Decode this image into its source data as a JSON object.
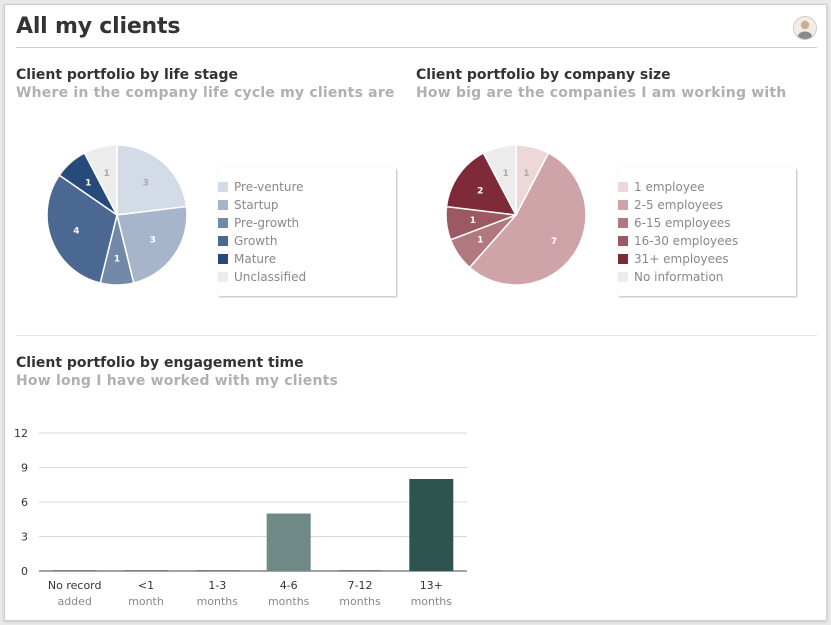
{
  "page": {
    "title": "All my clients"
  },
  "sections": {
    "life_stage": {
      "title": "Client portfolio by life stage",
      "subtitle": "Where in the company life cycle my clients are"
    },
    "company_size": {
      "title": "Client portfolio by company size",
      "subtitle": "How big are the companies I am working with"
    },
    "engagement": {
      "title": "Client portfolio by engagement time",
      "subtitle": "How long I have worked with my clients"
    }
  },
  "chart_data": [
    {
      "type": "pie",
      "title": "Client portfolio by life stage",
      "legend_position": "right",
      "slices": [
        {
          "label": "Pre-venture",
          "value": 3,
          "color": "#d3dce6"
        },
        {
          "label": "Startup",
          "value": 3,
          "color": "#a6b5c9"
        },
        {
          "label": "Pre-growth",
          "value": 1,
          "color": "#7389a8"
        },
        {
          "label": "Growth",
          "value": 4,
          "color": "#4b6893"
        },
        {
          "label": "Mature",
          "value": 1,
          "color": "#264a7a"
        },
        {
          "label": "Unclassified",
          "value": 1,
          "color": "#ececec"
        }
      ]
    },
    {
      "type": "pie",
      "title": "Client portfolio by company size",
      "legend_position": "right",
      "slices": [
        {
          "label": "1 employee",
          "value": 1,
          "color": "#eed7d8"
        },
        {
          "label": "2-5 employees",
          "value": 7,
          "color": "#cfa4a8"
        },
        {
          "label": "6-15 employees",
          "value": 1,
          "color": "#b27880"
        },
        {
          "label": "16-30 employees",
          "value": 1,
          "color": "#9c5863"
        },
        {
          "label": "31+ employees",
          "value": 2,
          "color": "#7f2a38"
        },
        {
          "label": "No information",
          "value": 1,
          "color": "#ececec"
        }
      ]
    },
    {
      "type": "bar",
      "title": "Client portfolio by engagement time",
      "categories": [
        {
          "line1": "No record",
          "line2": "added"
        },
        {
          "line1": "<1",
          "line2": "month"
        },
        {
          "line1": "1-3",
          "line2": "months"
        },
        {
          "line1": "4-6",
          "line2": "months"
        },
        {
          "line1": "7-12",
          "line2": "months"
        },
        {
          "line1": "13+",
          "line2": "months"
        }
      ],
      "values": [
        0,
        0,
        0,
        5,
        0,
        8
      ],
      "colors": [
        "#6f8a86",
        "#6f8a86",
        "#6f8a86",
        "#6f8a86",
        "#6f8a86",
        "#2f5450"
      ],
      "ylim": [
        0,
        12
      ],
      "yticks": [
        0,
        3,
        6,
        9,
        12
      ],
      "grid": true
    }
  ]
}
